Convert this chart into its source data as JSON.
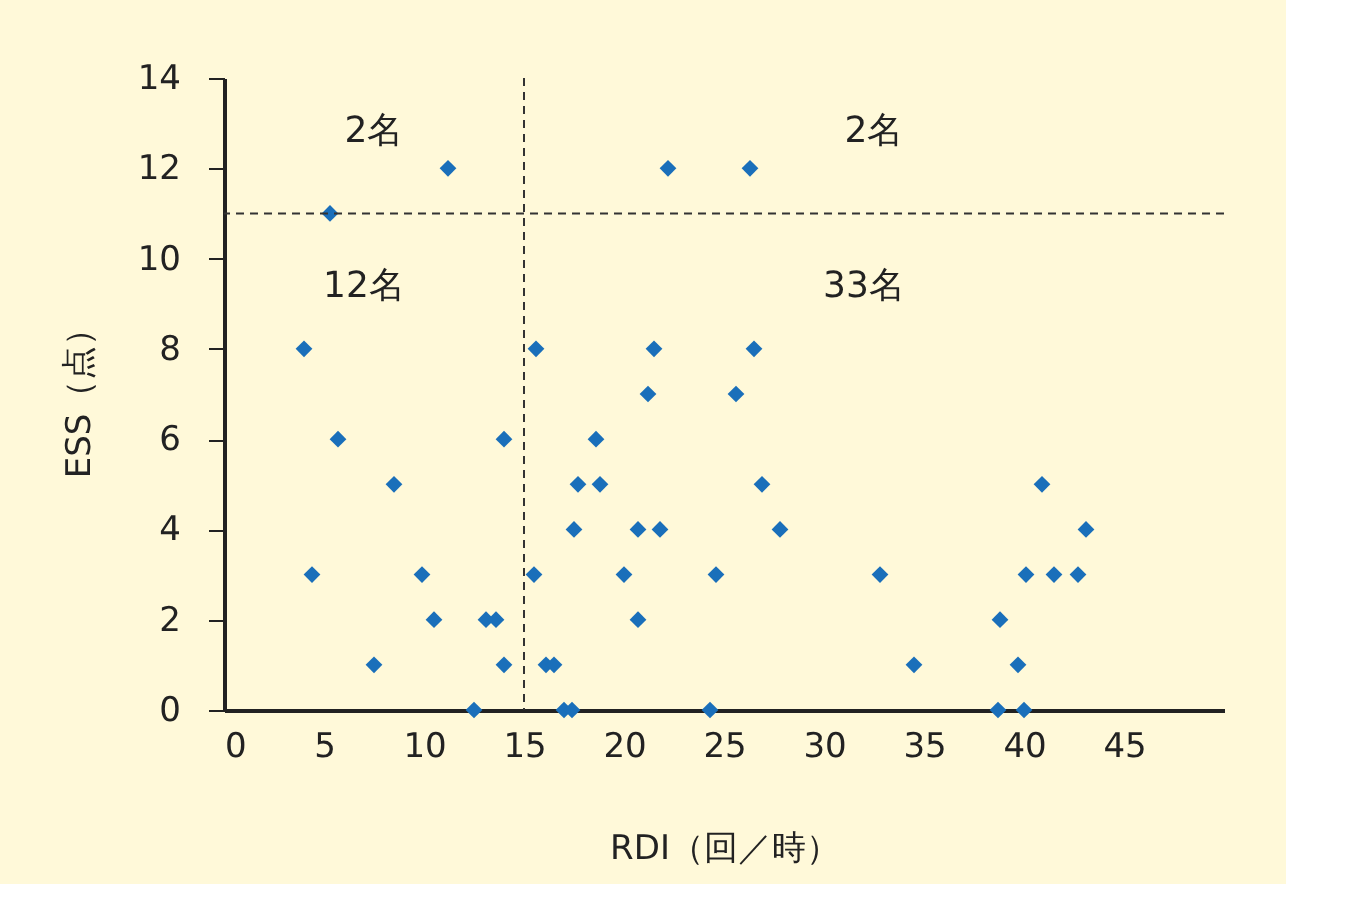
{
  "chart_data": {
    "type": "scatter",
    "xlabel": "RDI（回／時）",
    "ylabel": "ESS（点）",
    "x": [
      11.2,
      5.3,
      4.0,
      15.6,
      5.7,
      14.0,
      8.5,
      4.4,
      9.9,
      15.5,
      10.5,
      13.1,
      13.6,
      7.5,
      14.0,
      16.1,
      16.5,
      12.5,
      22.2,
      26.3,
      21.5,
      26.5,
      21.2,
      25.6,
      18.6,
      17.7,
      18.8,
      26.9,
      17.5,
      20.7,
      21.8,
      27.8,
      20.0,
      24.6,
      20.7,
      17.0,
      17.4,
      24.3,
      40.9,
      43.1,
      32.8,
      40.1,
      41.5,
      42.7,
      38.8,
      34.5,
      39.7,
      38.7,
      40.0
    ],
    "series": [
      {
        "color": "#1a6fba",
        "values": [
          12,
          11,
          8,
          8,
          6,
          6,
          5,
          3,
          3,
          3,
          2,
          2,
          2,
          1,
          1,
          1,
          1,
          0,
          12,
          12,
          8,
          8,
          7,
          7,
          6,
          5,
          5,
          5,
          4,
          4,
          4,
          4,
          3,
          3,
          2,
          0,
          0,
          0,
          5,
          4,
          3,
          3,
          3,
          3,
          2,
          1,
          1,
          0,
          0
        ]
      }
    ],
    "marker": "diamond",
    "xlim": [
      0,
      50
    ],
    "ylim": [
      0,
      14
    ],
    "xticks": [
      0,
      5,
      10,
      15,
      20,
      25,
      30,
      35,
      40,
      45
    ],
    "yticks": [
      0,
      2,
      4,
      6,
      8,
      10,
      12,
      14
    ],
    "grid": false,
    "ref_lines": [
      {
        "axis": "x",
        "value": 15,
        "line_style": "dashed",
        "color": "#333333"
      },
      {
        "axis": "y",
        "value": 11,
        "line_style": "dashed",
        "color": "#333333"
      }
    ],
    "annotations": [
      "2名",
      "2名",
      "12名",
      "33名"
    ]
  }
}
